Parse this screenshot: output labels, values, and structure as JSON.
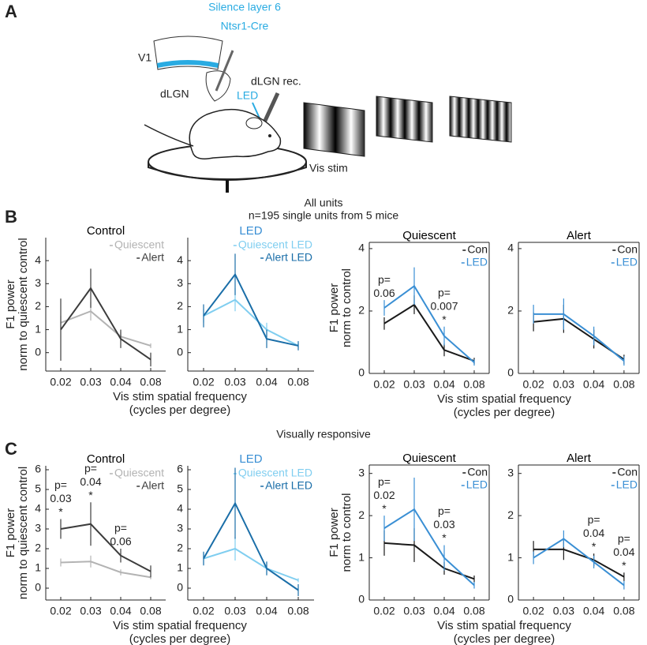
{
  "panels": {
    "a": "A",
    "b": "B",
    "c": "C"
  },
  "diagram": {
    "title_line1": "Silence layer 6",
    "title_line2": "Ntsr1-Cre",
    "v1": "V1",
    "dlgn": "dLGN",
    "dlgn_rec": "dLGN rec.",
    "led": "LED",
    "vis_stim": "Vis stim"
  },
  "row_b": {
    "heading": "All units",
    "subheading": "n=195 single units from 5 mice"
  },
  "row_c": {
    "heading": "Visually responsive"
  },
  "chart_data": [
    {
      "type": "line",
      "title": "Control",
      "title_color": "#000000",
      "box": false,
      "legend": "upper right",
      "ylabel": [
        "F1 power",
        "norm to quiescent control"
      ],
      "xlabel": [
        "Vis stim spatial frequency",
        "(cycles per degree)"
      ],
      "categories": [
        "0.02",
        "0.03",
        "0.04",
        "0.08"
      ],
      "ylim": [
        -0.8,
        5
      ],
      "yticks": [
        0,
        1,
        2,
        3,
        4
      ],
      "series": [
        {
          "name": "Quiescent",
          "color": "#b3b3b3",
          "values": [
            1.3,
            1.8,
            0.7,
            0.3
          ],
          "errors": [
            0.3,
            0.4,
            0.2,
            0.1
          ]
        },
        {
          "name": "Alert",
          "color": "#3c3c3c",
          "values": [
            1.0,
            2.8,
            0.6,
            -0.3
          ],
          "errors": [
            1.35,
            0.85,
            0.4,
            0.3
          ]
        }
      ]
    },
    {
      "type": "line",
      "title": "LED",
      "title_color": "#3a8fd4",
      "box": false,
      "legend": "upper right",
      "categories": [
        "0.02",
        "0.03",
        "0.04",
        "0.08"
      ],
      "ylim": [
        -0.8,
        5
      ],
      "yticks": [
        0,
        1,
        2,
        3,
        4
      ],
      "series": [
        {
          "name": "Quiescent LED",
          "color": "#80cef0",
          "values": [
            1.6,
            2.3,
            1.0,
            0.3
          ],
          "errors": [
            0.3,
            0.5,
            0.3,
            0.1
          ]
        },
        {
          "name": "Alert LED",
          "color": "#1a6ea8",
          "values": [
            1.6,
            3.4,
            0.6,
            0.3
          ],
          "errors": [
            0.5,
            0.9,
            0.4,
            0.2
          ]
        }
      ]
    },
    {
      "type": "line",
      "title": "Quiescent",
      "title_color": "#000000",
      "box": true,
      "legend": "upper right",
      "ylabel": [
        "F1 power",
        "norm to control"
      ],
      "xlabel": [
        "Vis stim spatial frequency",
        "(cycles per degree)"
      ],
      "categories": [
        "0.02",
        "0.03",
        "0.04",
        "0.08"
      ],
      "ylim": [
        0,
        4.2
      ],
      "yticks": [
        0,
        2,
        4
      ],
      "p_labels": [
        [
          "p=",
          "0.06"
        ],
        null,
        [
          "p=",
          "0.007",
          "*"
        ],
        null
      ],
      "series": [
        {
          "name": "Con",
          "color": "#1a1a1a",
          "values": [
            1.6,
            2.2,
            0.75,
            0.4
          ],
          "errors": [
            0.2,
            0.3,
            0.2,
            0.1
          ]
        },
        {
          "name": "LED",
          "color": "#3a8fd4",
          "values": [
            2.1,
            2.8,
            1.2,
            0.35
          ],
          "errors": [
            0.25,
            0.6,
            0.3,
            0.1
          ]
        }
      ]
    },
    {
      "type": "line",
      "title": "Alert",
      "title_color": "#000000",
      "box": true,
      "legend": "upper right",
      "categories": [
        "0.02",
        "0.03",
        "0.04",
        "0.08"
      ],
      "ylim": [
        0,
        4.2
      ],
      "yticks": [
        0,
        2,
        4
      ],
      "series": [
        {
          "name": "Con",
          "color": "#1a1a1a",
          "values": [
            1.65,
            1.75,
            1.1,
            0.45
          ],
          "errors": [
            0.3,
            0.45,
            0.3,
            0.15
          ]
        },
        {
          "name": "LED",
          "color": "#3a8fd4",
          "values": [
            1.9,
            1.9,
            1.2,
            0.4
          ],
          "errors": [
            0.3,
            0.5,
            0.3,
            0.15
          ]
        }
      ]
    },
    {
      "type": "line",
      "title": "Control",
      "title_color": "#000000",
      "box": false,
      "legend": "upper right",
      "ylabel": [
        "F1 power",
        "norm to quiescent control"
      ],
      "xlabel": [
        "Vis stim spatial frequency",
        "(cycles per degree)"
      ],
      "categories": [
        "0.02",
        "0.03",
        "0.04",
        "0.08"
      ],
      "ylim": [
        -0.6,
        6.2
      ],
      "yticks": [
        0,
        1,
        2,
        3,
        4,
        5,
        6
      ],
      "p_labels": [
        [
          "p=",
          "0.03",
          "*"
        ],
        [
          "p=",
          "0.04",
          "*"
        ],
        [
          "p=",
          "0.06"
        ],
        null
      ],
      "series": [
        {
          "name": "Quiescent",
          "color": "#b3b3b3",
          "values": [
            1.3,
            1.35,
            0.8,
            0.55
          ],
          "errors": [
            0.2,
            0.3,
            0.15,
            0.1
          ]
        },
        {
          "name": "Alert",
          "color": "#3c3c3c",
          "values": [
            3.0,
            3.25,
            1.65,
            0.85
          ],
          "errors": [
            0.5,
            1.1,
            0.35,
            0.3
          ]
        }
      ]
    },
    {
      "type": "line",
      "title": "LED",
      "title_color": "#3a8fd4",
      "box": false,
      "legend": "upper right",
      "categories": [
        "0.02",
        "0.03",
        "0.04",
        "0.08"
      ],
      "ylim": [
        -0.6,
        6.2
      ],
      "yticks": [
        0,
        1,
        2,
        3,
        4,
        5,
        6
      ],
      "series": [
        {
          "name": "Quiescent LED",
          "color": "#80cef0",
          "values": [
            1.5,
            2.0,
            1.0,
            0.4
          ],
          "errors": [
            0.3,
            0.6,
            0.3,
            0.1
          ]
        },
        {
          "name": "Alert LED",
          "color": "#1a6ea8",
          "values": [
            1.5,
            4.3,
            1.0,
            -0.1
          ],
          "errors": [
            0.35,
            1.8,
            0.35,
            0.3
          ]
        }
      ]
    },
    {
      "type": "line",
      "title": "Quiescent",
      "title_color": "#000000",
      "box": true,
      "legend": "upper right",
      "ylabel": [
        "F1 power",
        "norm to control"
      ],
      "xlabel": [
        "Vis stim spatial frequency",
        "(cycles per degree)"
      ],
      "categories": [
        "0.02",
        "0.03",
        "0.04",
        "0.08"
      ],
      "ylim": [
        0,
        3.2
      ],
      "yticks": [
        0,
        1,
        2,
        3
      ],
      "p_labels": [
        [
          "p=",
          "0.02",
          "*"
        ],
        null,
        [
          "p=",
          "0.03",
          "*"
        ],
        null
      ],
      "series": [
        {
          "name": "Con",
          "color": "#1a1a1a",
          "values": [
            1.35,
            1.3,
            0.75,
            0.5
          ],
          "errors": [
            0.3,
            0.4,
            0.15,
            0.08
          ]
        },
        {
          "name": "LED",
          "color": "#3a8fd4",
          "values": [
            1.7,
            2.15,
            1.0,
            0.35
          ],
          "errors": [
            0.3,
            0.75,
            0.3,
            0.08
          ]
        }
      ]
    },
    {
      "type": "line",
      "title": "Alert",
      "title_color": "#000000",
      "box": true,
      "legend": "upper right",
      "categories": [
        "0.02",
        "0.03",
        "0.04",
        "0.08"
      ],
      "ylim": [
        0,
        3.2
      ],
      "yticks": [
        0,
        1,
        2,
        3
      ],
      "p_labels": [
        null,
        null,
        [
          "p=",
          "0.04",
          "*"
        ],
        [
          "p=",
          "0.04",
          "*"
        ]
      ],
      "series": [
        {
          "name": "Con",
          "color": "#1a1a1a",
          "values": [
            1.2,
            1.2,
            0.95,
            0.55
          ],
          "errors": [
            0.2,
            0.25,
            0.15,
            0.1
          ]
        },
        {
          "name": "LED",
          "color": "#3a8fd4",
          "values": [
            1.0,
            1.45,
            0.9,
            0.35
          ],
          "errors": [
            0.15,
            0.2,
            0.15,
            0.1
          ]
        }
      ]
    }
  ]
}
